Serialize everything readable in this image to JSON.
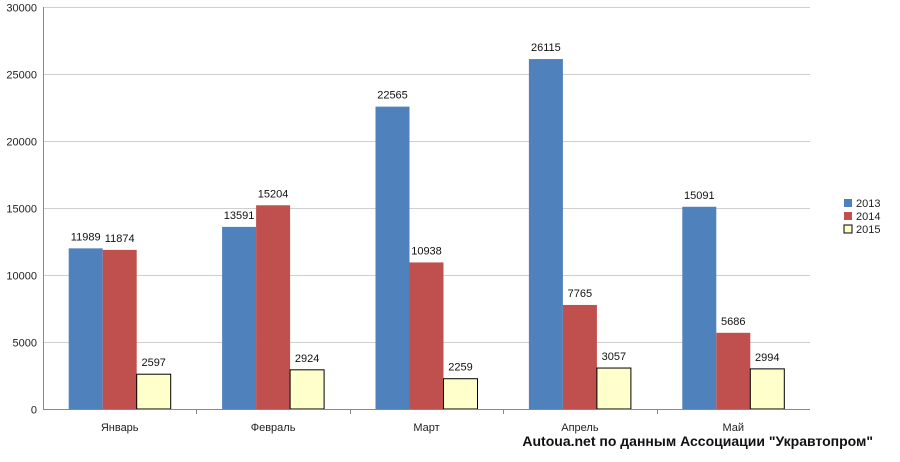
{
  "chart_data": {
    "type": "bar",
    "categories": [
      "Январь",
      "Февраль",
      "Март",
      "Апрель",
      "Май"
    ],
    "series": [
      {
        "name": "2013",
        "values": [
          11989,
          13591,
          22565,
          26115,
          15091
        ],
        "color": "#4f81bd"
      },
      {
        "name": "2014",
        "values": [
          11874,
          15204,
          10938,
          7765,
          5686
        ],
        "color": "#c0504d"
      },
      {
        "name": "2015",
        "values": [
          2597,
          2924,
          2259,
          3057,
          2994
        ],
        "color": "#ffffcc"
      }
    ],
    "ylim": [
      0,
      30000
    ],
    "yticks": [
      0,
      5000,
      10000,
      15000,
      20000,
      25000,
      30000
    ],
    "grid": true,
    "legend": "right",
    "title": "",
    "xlabel": "",
    "ylabel": ""
  },
  "source_text": "Autoua.net по данным Ассоциации \"Укравтопром\""
}
